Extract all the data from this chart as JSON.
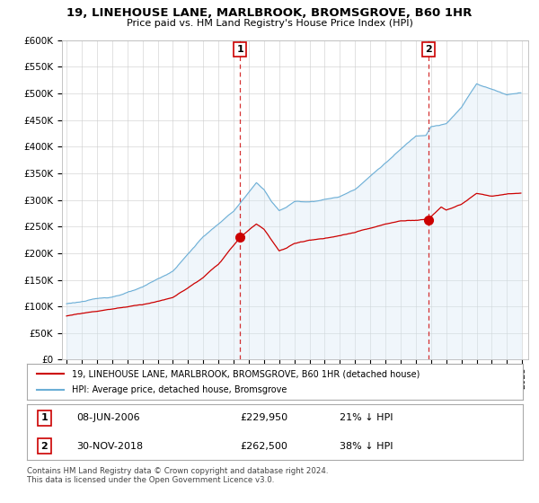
{
  "title": "19, LINEHOUSE LANE, MARLBROOK, BROMSGROVE, B60 1HR",
  "subtitle": "Price paid vs. HM Land Registry's House Price Index (HPI)",
  "ylim": [
    0,
    600000
  ],
  "yticks": [
    0,
    50000,
    100000,
    150000,
    200000,
    250000,
    300000,
    350000,
    400000,
    450000,
    500000,
    550000,
    600000
  ],
  "hpi_color": "#6baed6",
  "hpi_fill_color": "#d6e8f5",
  "price_color": "#cc0000",
  "legend_line1": "19, LINEHOUSE LANE, MARLBROOK, BROMSGROVE, B60 1HR (detached house)",
  "legend_line2": "HPI: Average price, detached house, Bromsgrove",
  "annotation1_date": "08-JUN-2006",
  "annotation1_price": "£229,950",
  "annotation1_pct": "21% ↓ HPI",
  "annotation2_date": "30-NOV-2018",
  "annotation2_price": "£262,500",
  "annotation2_pct": "38% ↓ HPI",
  "footer": "Contains HM Land Registry data © Crown copyright and database right 2024.\nThis data is licensed under the Open Government Licence v3.0.",
  "background_color": "#ffffff"
}
